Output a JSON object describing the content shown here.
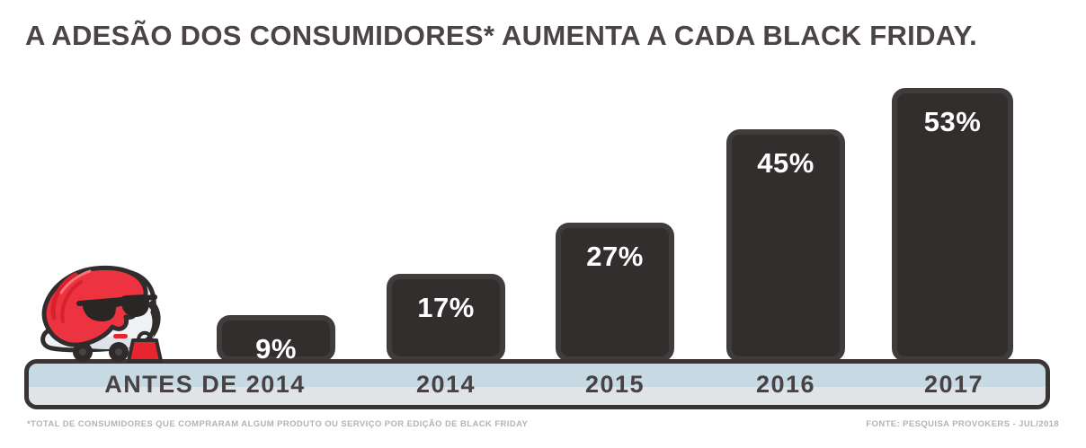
{
  "title": "A ADESÃO DOS CONSUMIDORES* AUMENTA A CADA BLACK FRIDAY.",
  "chart_data": {
    "type": "bar",
    "categories": [
      "ANTES DE 2014",
      "2014",
      "2015",
      "2016",
      "2017"
    ],
    "values": [
      9,
      17,
      27,
      45,
      53
    ],
    "value_labels": [
      "9%",
      "17%",
      "27%",
      "45%",
      "53%"
    ],
    "title": "A ADESÃO DOS CONSUMIDORES* AUMENTA A CADA BLACK FRIDAY.",
    "xlabel": "",
    "ylabel": "",
    "ylim": [
      0,
      60
    ],
    "grid": false,
    "legend": "none",
    "data_labels_position": "inside-top",
    "bar_color": "#322e2e",
    "bar_rim_color": "#413c3c",
    "value_label_color": "#ffffff",
    "axis_band": {
      "top_color": "#c7d9e3",
      "bottom_color": "#e1e4e7",
      "border_color": "#3a3434"
    }
  },
  "mascot": {
    "icon": "waze-shopper-mascot",
    "description_colors": {
      "hair": "#ee3340",
      "hair_shade": "#d6212e",
      "body": "#eef2f5",
      "outline": "#322d2d",
      "bag": "#e8252f"
    }
  },
  "footer": {
    "note": "*TOTAL DE CONSUMIDORES QUE COMPRARAM ALGUM PRODUTO OU SERVIÇO POR EDIÇÃO DE BLACK FRIDAY",
    "source": "FONTE: PESQUISA PROVOKERS - JUL/2018"
  },
  "colors": {
    "background": "#ffffff",
    "title_text": "#4a4444",
    "category_text": "#494242",
    "footnote_text": "#b3b3b3"
  }
}
